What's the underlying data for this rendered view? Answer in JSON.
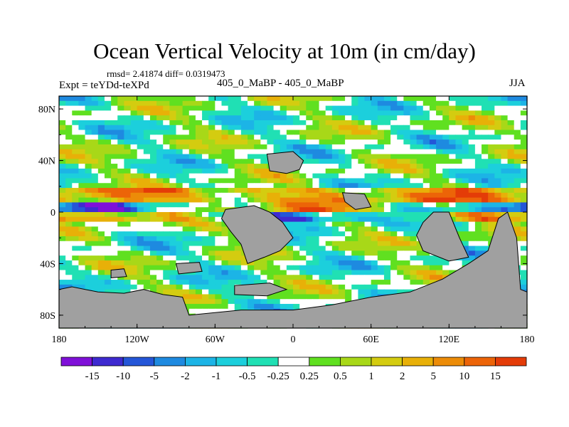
{
  "chart_data": {
    "type": "heatmap",
    "title": "Ocean Vertical Velocity at 10m (in cm/day)",
    "stats_text": "rmsd= 2.41874 diff= 0.0319473",
    "experiment_label": "Expt = teYDd-teXPd",
    "subtitle": "405_0_MaBP - 405_0_MaBP",
    "season": "JJA",
    "x_axis": {
      "range": [
        -180,
        180
      ],
      "ticks": [
        {
          "value": -180,
          "label": "180"
        },
        {
          "value": -120,
          "label": "120W"
        },
        {
          "value": -60,
          "label": "60W"
        },
        {
          "value": 0,
          "label": "0"
        },
        {
          "value": 60,
          "label": "60E"
        },
        {
          "value": 120,
          "label": "120E"
        },
        {
          "value": 180,
          "label": "180"
        }
      ]
    },
    "y_axis": {
      "range": [
        -90,
        90
      ],
      "ticks": [
        {
          "value": 80,
          "label": "80N"
        },
        {
          "value": 40,
          "label": "40N"
        },
        {
          "value": 0,
          "label": "0"
        },
        {
          "value": -40,
          "label": "40S"
        },
        {
          "value": -80,
          "label": "80S"
        }
      ]
    },
    "colorbar": {
      "colors": [
        "#7f10d8",
        "#3e2ad0",
        "#2456d8",
        "#1e8ae0",
        "#1cb4e6",
        "#1ccfdc",
        "#20e0b4",
        "#ffffff",
        "#60e020",
        "#a8d818",
        "#d4cc10",
        "#e8b008",
        "#ec8c08",
        "#ec6408",
        "#e43c08"
      ],
      "boundaries": [
        "-15",
        "-10",
        "-5",
        "-2",
        "-1",
        "-0.5",
        "-0.25",
        "0.25",
        "0.5",
        "1",
        "2",
        "5",
        "10",
        "15"
      ]
    },
    "land_color": "#a0a0a0"
  }
}
